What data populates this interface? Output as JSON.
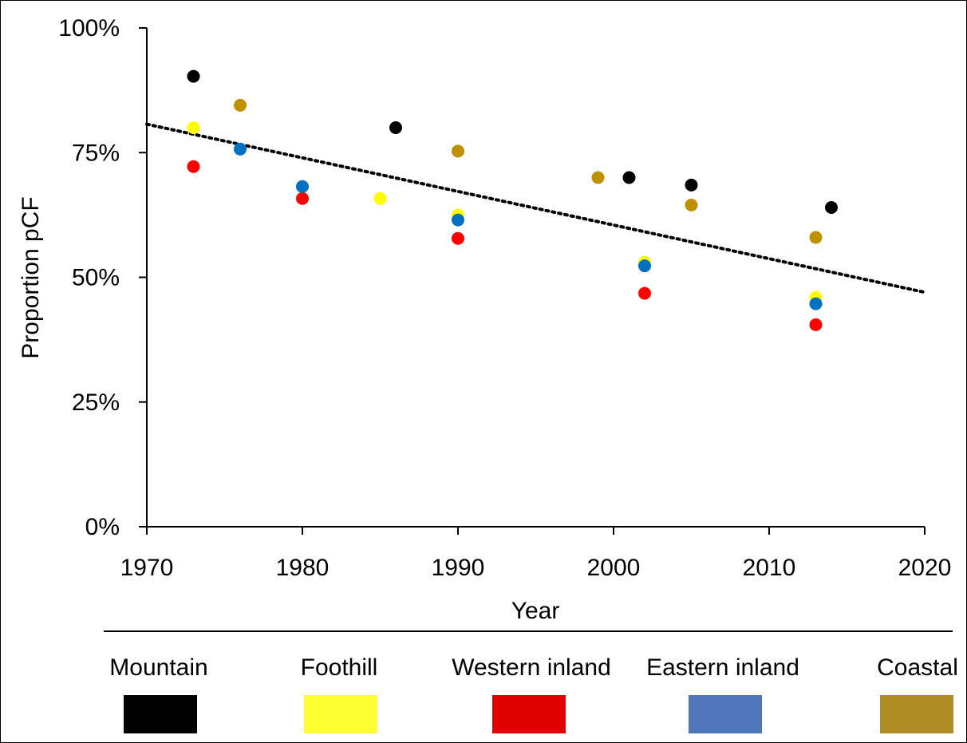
{
  "chart_data": {
    "type": "scatter",
    "xlabel": "Year",
    "ylabel": "Proportion pCF",
    "xlim": [
      1970,
      2020
    ],
    "ylim": [
      0,
      1
    ],
    "x_ticks": [
      1970,
      1980,
      1990,
      2000,
      2010,
      2020
    ],
    "y_ticks": [
      {
        "value": 0,
        "label": "0%"
      },
      {
        "value": 0.25,
        "label": "25%"
      },
      {
        "value": 0.5,
        "label": "50%"
      },
      {
        "value": 0.75,
        "label": "75%"
      },
      {
        "value": 1,
        "label": "100%"
      }
    ],
    "grid": false,
    "legend_position": "bottom",
    "trendline": {
      "style": "dotted",
      "color": "#000000",
      "x": [
        1970,
        2020
      ],
      "y": [
        0.807,
        0.47
      ]
    },
    "series": [
      {
        "name": "Mountain",
        "color": "#000000",
        "points": [
          {
            "x": 1973,
            "y": 0.903
          },
          {
            "x": 1986,
            "y": 0.8
          },
          {
            "x": 2001,
            "y": 0.7
          },
          {
            "x": 2005,
            "y": 0.685
          },
          {
            "x": 2014,
            "y": 0.64
          }
        ]
      },
      {
        "name": "Foothill",
        "color": "#ffff00",
        "points": [
          {
            "x": 1973,
            "y": 0.8
          },
          {
            "x": 1985,
            "y": 0.658
          },
          {
            "x": 1990,
            "y": 0.625
          },
          {
            "x": 2002,
            "y": 0.53
          },
          {
            "x": 2013,
            "y": 0.46
          }
        ]
      },
      {
        "name": "Western inland",
        "color": "#ff0000",
        "points": [
          {
            "x": 1973,
            "y": 0.722
          },
          {
            "x": 1980,
            "y": 0.658
          },
          {
            "x": 1990,
            "y": 0.578
          },
          {
            "x": 2002,
            "y": 0.468
          },
          {
            "x": 2013,
            "y": 0.405
          }
        ]
      },
      {
        "name": "Eastern inland",
        "color": "#0070c0",
        "points": [
          {
            "x": 1976,
            "y": 0.757
          },
          {
            "x": 1980,
            "y": 0.682
          },
          {
            "x": 1990,
            "y": 0.615
          },
          {
            "x": 2002,
            "y": 0.523
          },
          {
            "x": 2013,
            "y": 0.447
          }
        ]
      },
      {
        "name": "Coastal",
        "color": "#bf9000",
        "points": [
          {
            "x": 1976,
            "y": 0.845
          },
          {
            "x": 1990,
            "y": 0.753
          },
          {
            "x": 1999,
            "y": 0.7
          },
          {
            "x": 2005,
            "y": 0.645
          },
          {
            "x": 2013,
            "y": 0.58
          }
        ]
      }
    ],
    "legend": [
      {
        "label": "Mountain",
        "swatch_color": "#000000"
      },
      {
        "label": "Foothill",
        "swatch_color": "#ffff33"
      },
      {
        "label": "Western inland",
        "swatch_color": "#e00000"
      },
      {
        "label": "Eastern inland",
        "swatch_color": "#4f76b8"
      },
      {
        "label": "Coastal",
        "swatch_color": "#b08d24"
      }
    ]
  }
}
